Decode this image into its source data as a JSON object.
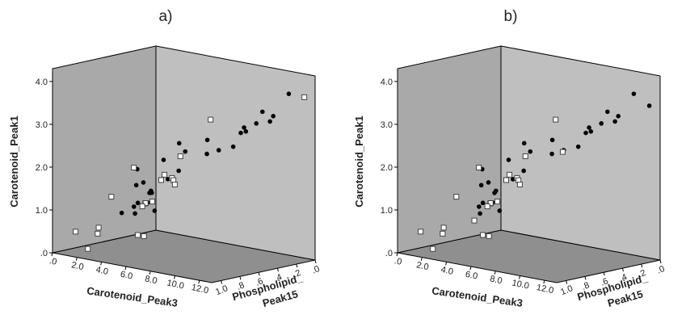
{
  "chart_data": [
    {
      "type": "scatter3d",
      "title": "a)",
      "xlabel": "Carotenoid_Peak3",
      "ylabel": "Carotenoid_Peak1",
      "zlabel": [
        "Phospholipid_",
        "Peak15"
      ],
      "xlim": [
        0,
        13
      ],
      "ylim": [
        0,
        4.3
      ],
      "zlim": [
        0,
        1.1
      ],
      "xticks": [
        {
          "value": 0,
          "label": ".0"
        },
        {
          "value": 2,
          "label": "2.0"
        },
        {
          "value": 4,
          "label": "4.0"
        },
        {
          "value": 6,
          "label": "6.0"
        },
        {
          "value": 8,
          "label": "8.0"
        },
        {
          "value": 10,
          "label": "10.0"
        },
        {
          "value": 12,
          "label": "12.0"
        }
      ],
      "yticks": [
        {
          "value": 0,
          "label": ".0"
        },
        {
          "value": 1,
          "label": "1.0"
        },
        {
          "value": 2,
          "label": "2.0"
        },
        {
          "value": 3,
          "label": "3.0"
        },
        {
          "value": 4,
          "label": "4.0"
        }
      ],
      "zticks": [
        {
          "value": 1,
          "label": "1.0"
        },
        {
          "value": 0.8,
          "label": ".8"
        },
        {
          "value": 0.6,
          "label": ".6"
        },
        {
          "value": 0.4,
          "label": ".4"
        },
        {
          "value": 0.2,
          "label": ".2"
        },
        {
          "value": 0,
          "label": ".0"
        }
      ],
      "series": [
        {
          "marker": "circle",
          "color": "#000000",
          "x": [
            12,
            11,
            11.5,
            12,
            10.5,
            10.8,
            9.5,
            10,
            9,
            8.2,
            8,
            6.5,
            7,
            8,
            7.5,
            6,
            4.2,
            5,
            6.5,
            6,
            7,
            6.2,
            5.5,
            6.8,
            3,
            3.2,
            5.2,
            4.5,
            3.5
          ],
          "y": [
            3.9,
            3.5,
            3.4,
            3.35,
            3.2,
            3.1,
            3.05,
            3.0,
            2.6,
            2.5,
            2.45,
            2.6,
            2.5,
            2.2,
            2.0,
            2.3,
            2.4,
            2.1,
            1.7,
            1.6,
            1.5,
            1.45,
            1.3,
            1.25,
            1.5,
            1.55,
            1.1,
            1.1,
            1.3
          ],
          "z": [
            0.15,
            0.3,
            0.25,
            0.35,
            0.3,
            0.45,
            0.3,
            0.4,
            0.35,
            0.4,
            0.5,
            0.3,
            0.6,
            0.8,
            0.85,
            0.7,
            0.3,
            0.85,
            0.9,
            0.85,
            1.0,
            1.0,
            0.95,
            0.9,
            0.6,
            0.55,
            0.9,
            0.95,
            0.5
          ]
        },
        {
          "marker": "square",
          "color": "#ffffff",
          "x": [
            12.5,
            6,
            4.3,
            2.8,
            3,
            3.5,
            4,
            4.5,
            5,
            2.5,
            4.5,
            5.3,
            5.8,
            7,
            6.2,
            6.7,
            1.5,
            3,
            3.3,
            2.5
          ],
          "y": [
            3.8,
            3.0,
            2.1,
            1.9,
            1.6,
            1.55,
            1.6,
            1.6,
            1.55,
            1.3,
            1.2,
            1.3,
            1.3,
            1.5,
            0.7,
            0.7,
            0.55,
            0.7,
            0.6,
            0.2
          ],
          "z": [
            0.05,
            0.2,
            0.3,
            0.6,
            0.3,
            0.4,
            0.35,
            0.4,
            0.45,
            0.8,
            0.7,
            0.8,
            0.9,
            0.95,
            1.0,
            1.0,
            1.05,
            1.0,
            1.05,
            1.05
          ]
        }
      ]
    },
    {
      "type": "scatter3d",
      "title": "b)",
      "xlabel": "Carotenoid_Peak3",
      "ylabel": "Carotenoid_Peak1",
      "zlabel": [
        "Phospholipid_",
        "Peak15"
      ],
      "xlim": [
        0,
        13
      ],
      "ylim": [
        0,
        4.3
      ],
      "zlim": [
        0,
        1.1
      ],
      "xticks": [
        {
          "value": 0,
          "label": ".0"
        },
        {
          "value": 2,
          "label": "2.0"
        },
        {
          "value": 4,
          "label": "4.0"
        },
        {
          "value": 6,
          "label": "6.0"
        },
        {
          "value": 8,
          "label": "8.0"
        },
        {
          "value": 10,
          "label": "10.0"
        },
        {
          "value": 12,
          "label": "12.0"
        }
      ],
      "yticks": [
        {
          "value": 0,
          "label": ".0"
        },
        {
          "value": 1,
          "label": "1.0"
        },
        {
          "value": 2,
          "label": "2.0"
        },
        {
          "value": 3,
          "label": "3.0"
        },
        {
          "value": 4,
          "label": "4.0"
        }
      ],
      "zticks": [
        {
          "value": 1,
          "label": "1.0"
        },
        {
          "value": 0.8,
          "label": ".8"
        },
        {
          "value": 0.6,
          "label": ".6"
        },
        {
          "value": 0.4,
          "label": ".4"
        },
        {
          "value": 0.2,
          "label": ".2"
        },
        {
          "value": 0,
          "label": ".0"
        }
      ],
      "series": [
        {
          "marker": "circle",
          "color": "#000000",
          "x": [
            12,
            12.5,
            11,
            11.5,
            12,
            10.5,
            10.8,
            9.5,
            10,
            9,
            8.2,
            8,
            6.5,
            7,
            8,
            7.5,
            6,
            4.2,
            5,
            6.5,
            6,
            7,
            6.2,
            5.5,
            6.8,
            3,
            3.2,
            5.2
          ],
          "y": [
            3.9,
            3.6,
            3.5,
            3.4,
            3.35,
            3.2,
            3.1,
            3.05,
            3.0,
            2.6,
            2.5,
            2.45,
            2.6,
            2.5,
            2.2,
            2.0,
            2.3,
            2.4,
            2.1,
            1.7,
            1.6,
            1.5,
            1.45,
            1.3,
            1.25,
            1.5,
            1.55,
            1.1
          ],
          "z": [
            0.15,
            0.05,
            0.3,
            0.25,
            0.35,
            0.3,
            0.45,
            0.3,
            0.4,
            0.35,
            0.4,
            0.5,
            0.3,
            0.6,
            0.8,
            0.85,
            0.7,
            0.3,
            0.85,
            0.9,
            0.85,
            1.0,
            1.0,
            0.95,
            0.9,
            0.6,
            0.55,
            0.9
          ]
        },
        {
          "marker": "square",
          "color": "#ffffff",
          "x": [
            6,
            4.3,
            2.8,
            3,
            3.5,
            4,
            4.5,
            5,
            2.5,
            4.5,
            5.3,
            5.8,
            7,
            6.2,
            6.7,
            1.5,
            3,
            3.3,
            2.5,
            8.5,
            5.5
          ],
          "y": [
            3.0,
            2.1,
            1.9,
            1.6,
            1.55,
            1.6,
            1.6,
            1.55,
            1.3,
            1.2,
            1.3,
            1.3,
            1.5,
            0.7,
            0.7,
            0.55,
            0.7,
            0.6,
            0.2,
            2.5,
            1.0
          ],
          "z": [
            0.2,
            0.3,
            0.6,
            0.3,
            0.4,
            0.35,
            0.4,
            0.45,
            0.8,
            0.7,
            0.8,
            0.9,
            0.95,
            1.0,
            1.0,
            1.05,
            1.0,
            1.05,
            1.05,
            0.45,
            1.0
          ]
        }
      ]
    }
  ]
}
